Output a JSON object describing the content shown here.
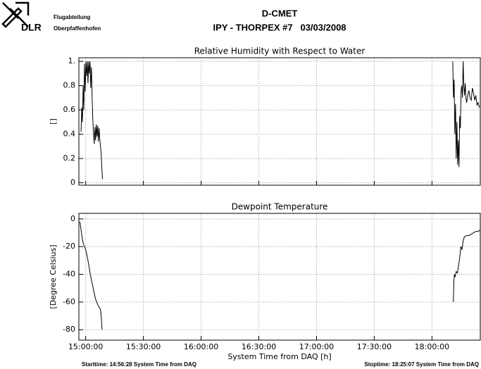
{
  "header": {
    "org": "DLR",
    "dept": "Flugabteilung",
    "site": "Oberpfaffenhofen",
    "title": "D-CMET",
    "subtitle": "IPY - THORPEX #7   03/03/2008"
  },
  "footer": {
    "start": "Starttime: 14:56:28 System Time from DAQ",
    "stop": "Stoptime: 18:25:07 System Time from DAQ"
  },
  "chart_data": [
    {
      "type": "line",
      "title": "Relative Humidity with Respect to Water",
      "ylabel": "[]",
      "xlim": [
        14.9411,
        18.4186
      ],
      "ylim": [
        -0.02,
        1.03
      ],
      "grid": true,
      "xticks": [
        15,
        15.5,
        16,
        16.5,
        17,
        17.5,
        18
      ],
      "yticks": [
        0,
        0.2,
        0.4,
        0.6,
        0.8,
        {
          "value": 1,
          "label": "1."
        }
      ],
      "x": [
        14.96,
        14.966,
        14.972,
        14.978,
        14.984,
        14.99,
        14.996,
        15.002,
        15.008,
        15.014,
        15.02,
        15.026,
        15.032,
        15.038,
        15.044,
        15.05,
        15.056,
        15.062,
        15.068,
        15.074,
        15.08,
        15.086,
        15.092,
        15.098,
        15.104,
        15.11,
        15.116,
        15.122,
        15.128,
        15.134,
        15.14,
        15.146,
        16.5,
        18.18,
        18.186,
        18.192,
        18.198,
        18.204,
        18.21,
        18.216,
        18.222,
        18.228,
        18.234,
        18.24,
        18.246,
        18.252,
        18.258,
        18.264,
        18.27,
        18.276,
        18.282,
        18.288,
        18.294,
        18.3,
        18.31,
        18.32,
        18.33,
        18.34,
        18.35,
        18.36,
        18.37,
        18.38,
        18.39,
        18.4,
        18.41
      ],
      "series": [
        {
          "color": "#000000",
          "values": [
            0.42,
            0.62,
            0.5,
            0.8,
            0.6,
            0.98,
            0.75,
            1.0,
            0.88,
            1.0,
            0.82,
            1.0,
            0.9,
            1.0,
            0.78,
            0.95,
            0.7,
            0.52,
            0.4,
            0.32,
            0.46,
            0.35,
            0.48,
            0.38,
            0.47,
            0.34,
            0.45,
            0.36,
            0.3,
            0.25,
            0.12,
            0.03,
            null,
            1.0,
            0.7,
            0.85,
            0.4,
            0.65,
            0.2,
            0.5,
            0.15,
            0.35,
            0.13,
            0.55,
            0.45,
            0.75,
            0.8,
            0.7,
            1.0,
            0.8,
            0.72,
            0.82,
            0.7,
            0.66,
            0.72,
            0.76,
            0.7,
            0.68,
            0.78,
            0.74,
            0.68,
            0.72,
            0.64,
            0.66,
            0.62
          ]
        }
      ]
    },
    {
      "type": "line",
      "title": "Dewpoint Temperature",
      "ylabel": "[Degree Celsius]",
      "xlabel": "System Time from DAQ [h]",
      "xlim": [
        14.9411,
        18.4186
      ],
      "ylim": [
        -87.5,
        4
      ],
      "grid": true,
      "xticks": [
        {
          "value": 15,
          "label": "15:00:00"
        },
        {
          "value": 15.5,
          "label": "15:30:00"
        },
        {
          "value": 16,
          "label": "16:00:00"
        },
        {
          "value": 16.5,
          "label": "16:30:00"
        },
        {
          "value": 17,
          "label": "17:00:00"
        },
        {
          "value": 17.5,
          "label": "17:30:00"
        },
        {
          "value": 18,
          "label": "18:00:00"
        }
      ],
      "yticks": [
        0,
        -20,
        -40,
        -60,
        -80
      ],
      "x": [
        14.95,
        14.96,
        14.97,
        14.98,
        14.99,
        15.0,
        15.01,
        15.02,
        15.03,
        15.04,
        15.05,
        15.06,
        15.07,
        15.08,
        15.09,
        15.1,
        15.11,
        15.12,
        15.13,
        15.136,
        15.142,
        16.5,
        18.185,
        18.19,
        18.195,
        18.2,
        18.21,
        18.22,
        18.23,
        18.24,
        18.25,
        18.26,
        18.27,
        18.28,
        18.3,
        18.32,
        18.34,
        18.36,
        18.38,
        18.4,
        18.418
      ],
      "series": [
        {
          "color": "#000000",
          "values": [
            -2,
            -8,
            -14,
            -18,
            -20,
            -22,
            -26,
            -30,
            -35,
            -40,
            -44,
            -48,
            -52,
            -56,
            -59,
            -61,
            -63,
            -64,
            -66,
            -72,
            -80,
            null,
            -60,
            -44,
            -40,
            -42,
            -38,
            -39,
            -34,
            -28,
            -20,
            -22,
            -16,
            -13,
            -12,
            -12,
            -11,
            -10,
            -9,
            -9,
            -8
          ]
        }
      ]
    }
  ]
}
